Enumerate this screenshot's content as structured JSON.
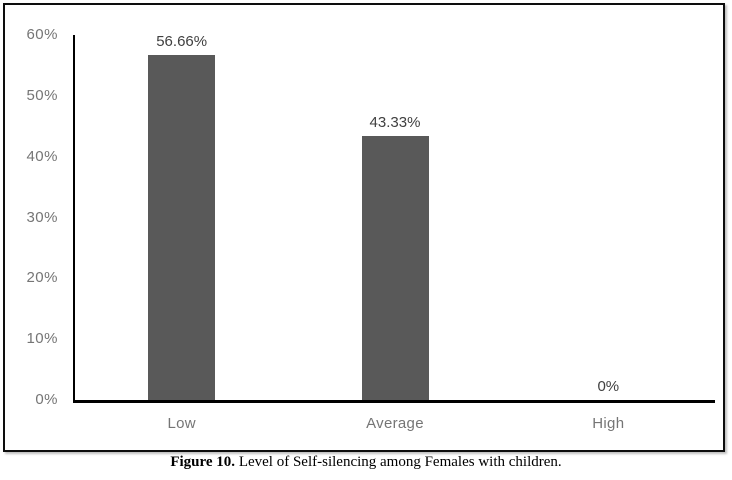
{
  "figure": {
    "caption_prefix": "Figure 10.",
    "caption_text": " Level of Self-silencing among Females with children."
  },
  "chart_data": {
    "type": "bar",
    "title": "",
    "xlabel": "",
    "ylabel": "",
    "categories": [
      "Low",
      "Average",
      "High"
    ],
    "values": [
      56.66,
      43.33,
      0
    ],
    "data_labels": [
      "56.66%",
      "43.33%",
      "0%"
    ],
    "ylim": [
      0,
      60
    ],
    "ytick_step": 10,
    "ytick_labels": [
      "0%",
      "10%",
      "20%",
      "30%",
      "40%",
      "50%",
      "60%"
    ],
    "grid": false,
    "legend": "none",
    "colors": {
      "bar": "#595959",
      "axis": "#000000",
      "tick_label": "#757575",
      "category_label": "#757575",
      "data_label": "#404040",
      "border": "#0d0d0d",
      "background": "#ffffff"
    }
  }
}
